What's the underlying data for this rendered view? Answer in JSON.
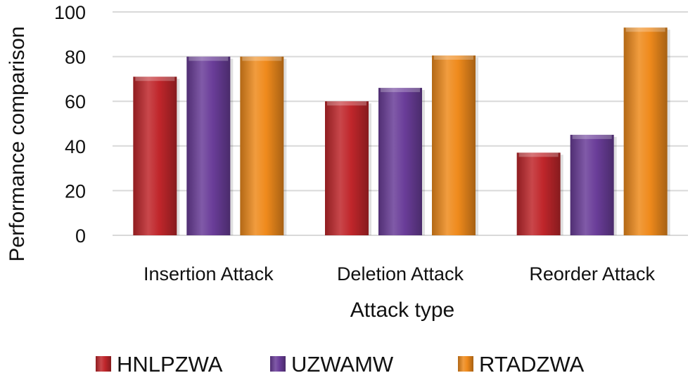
{
  "chart_data": {
    "type": "bar",
    "title": "",
    "xlabel": "Attack type",
    "ylabel": "Performance comparison",
    "ylim": [
      0,
      100
    ],
    "yticks": [
      0,
      20,
      40,
      60,
      80,
      100
    ],
    "grid": true,
    "legend_position": "bottom",
    "categories": [
      "Insertion Attack",
      "Deletion Attack",
      "Reorder Attack"
    ],
    "series": [
      {
        "name": "HNLPZWA",
        "values": [
          71,
          60,
          37
        ],
        "color": "#c0262b"
      },
      {
        "name": "UZWAMW",
        "values": [
          80,
          66,
          45
        ],
        "color": "#6a3d99"
      },
      {
        "name": "RTADZWA",
        "values": [
          80,
          80.5,
          93
        ],
        "color": "#ef8a1c"
      }
    ]
  }
}
